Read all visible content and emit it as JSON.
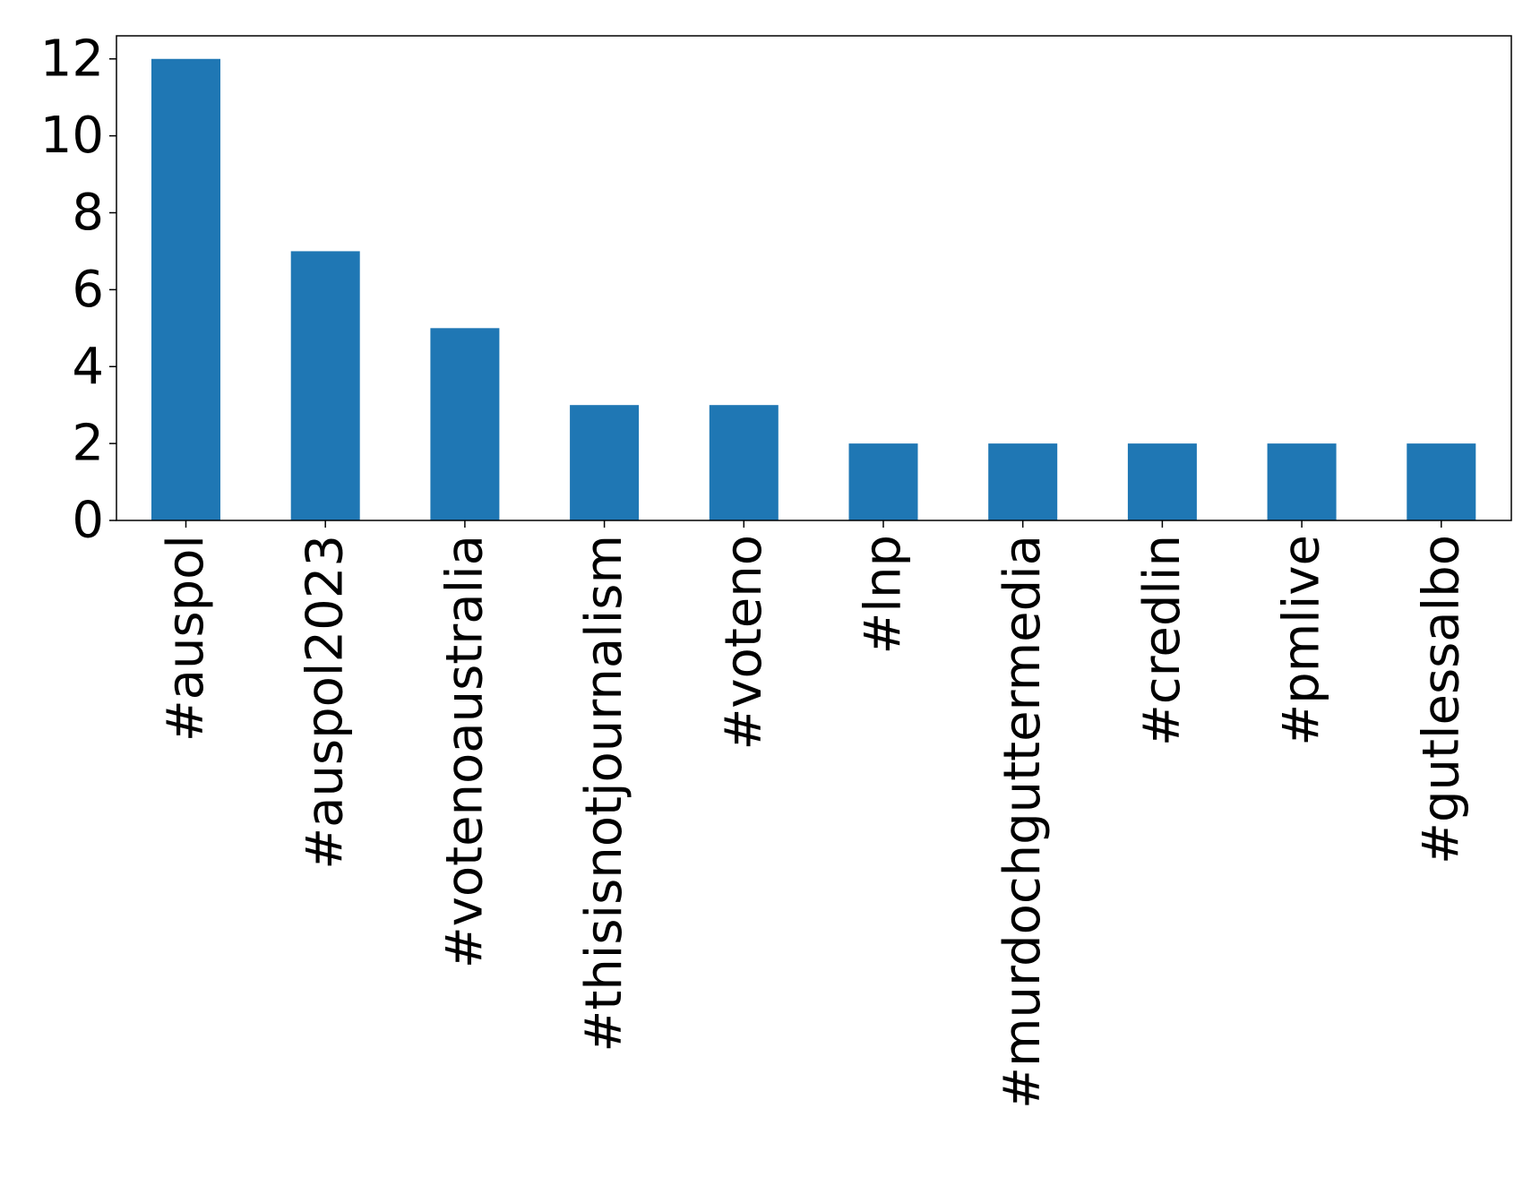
{
  "chart_data": {
    "type": "bar",
    "categories": [
      "#auspol",
      "#auspol2023",
      "#votenoaustralia",
      "#thisisnotjournalism",
      "#voteno",
      "#lnp",
      "#murdochguttermedia",
      "#credlin",
      "#pmlive",
      "#gutlessalbo"
    ],
    "values": [
      12,
      7,
      5,
      3,
      3,
      2,
      2,
      2,
      2,
      2
    ],
    "title": "",
    "xlabel": "",
    "ylabel": "",
    "ylim": [
      0,
      12.6
    ],
    "yticks": [
      0,
      2,
      4,
      6,
      8,
      10,
      12
    ],
    "grid": false,
    "bar_color": "#1f77b4"
  }
}
